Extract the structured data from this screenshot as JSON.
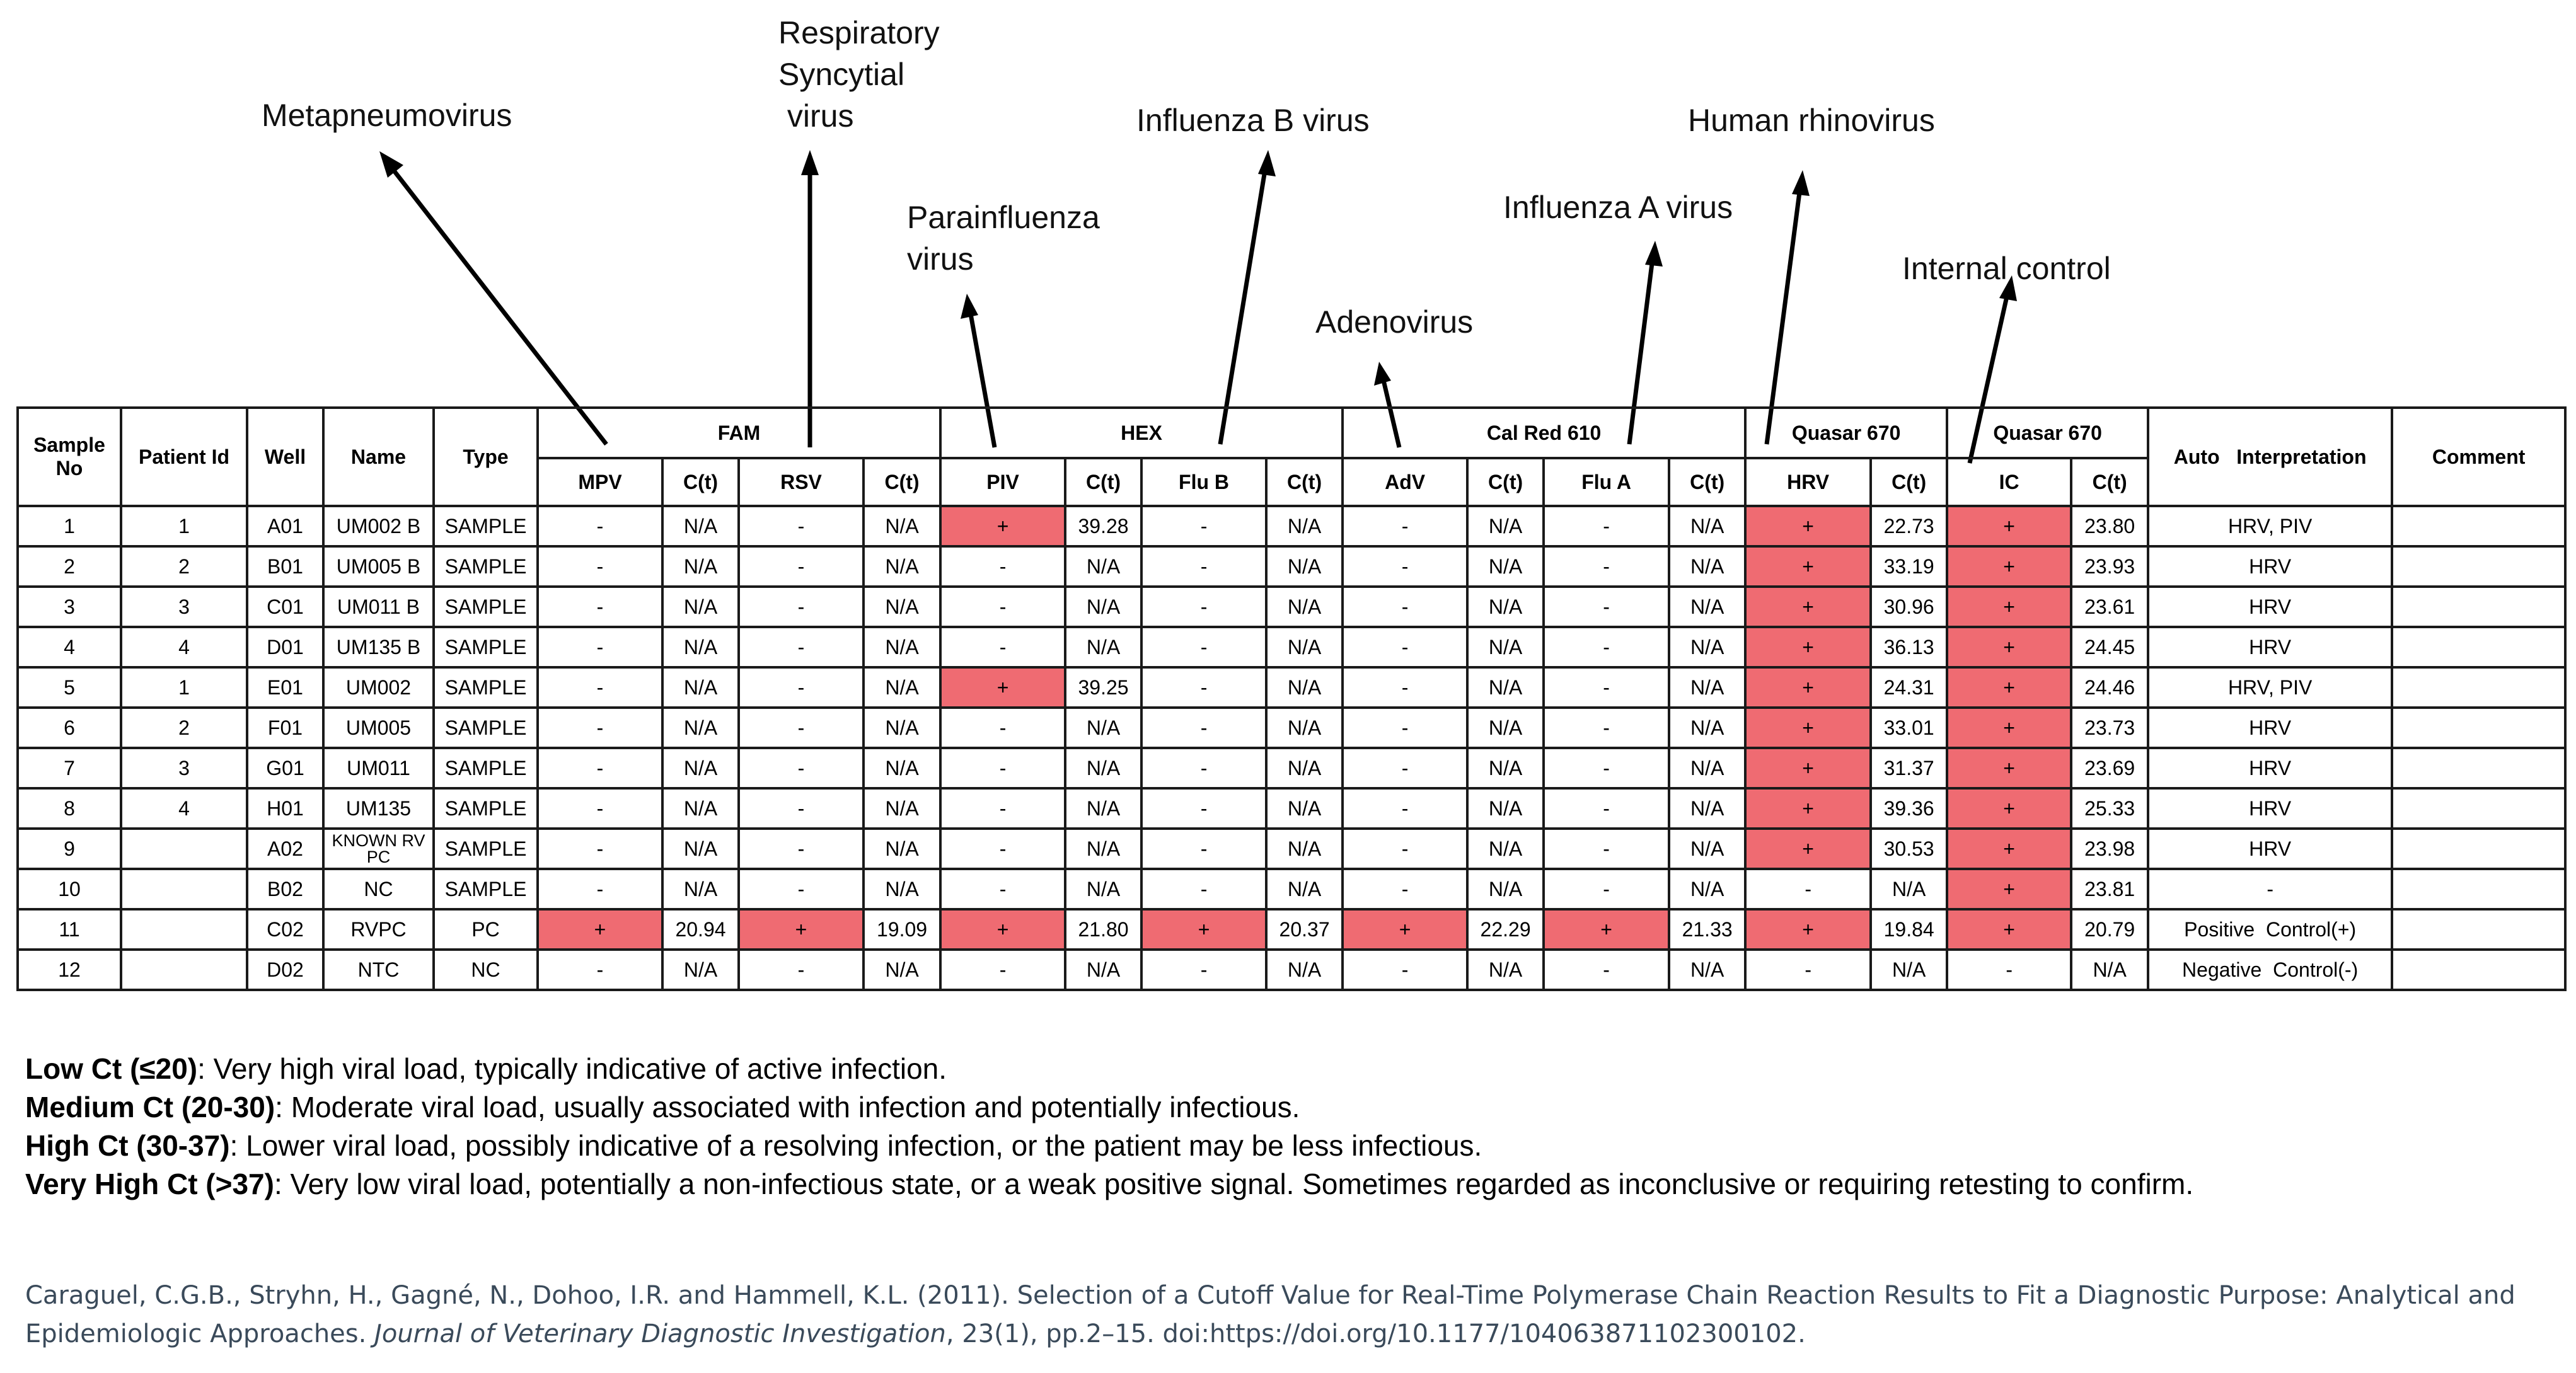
{
  "annotations": {
    "metapneumovirus": "Metapneumovirus",
    "rsv_line1": "Respiratory",
    "rsv_line2": "Syncytial",
    "rsv_line3": " virus",
    "influenza_b": "Influenza B virus",
    "parainfluenza_line1": "Parainfluenza",
    "parainfluenza_line2": "virus",
    "influenza_a": "Influenza A virus",
    "adenovirus": "Adenovirus",
    "human_rhinovirus": "Human rhinovirus",
    "internal_control": "Internal control"
  },
  "table": {
    "headers": {
      "sample_no": "Sample No",
      "patient_id": "Patient Id",
      "well": "Well",
      "name": "Name",
      "type": "Type",
      "fam": "FAM",
      "hex": "HEX",
      "calred": "Cal Red 610",
      "quasar1": "Quasar 670",
      "quasar2": "Quasar 670",
      "auto": "Auto   Interpretation",
      "comment": "Comment",
      "sub": [
        "MPV",
        "C(t)",
        "RSV",
        "C(t)",
        "PIV",
        "C(t)",
        "Flu B",
        "C(t)",
        "AdV",
        "C(t)",
        "Flu A",
        "C(t)",
        "HRV",
        "C(t)",
        "IC",
        "C(t)"
      ]
    },
    "rows": [
      {
        "sample": "1",
        "patient": "1",
        "well": "A01",
        "name": "UM002 B",
        "type": "SAMPLE",
        "vals": [
          "-",
          "N/A",
          "-",
          "N/A",
          "+",
          "39.28",
          "-",
          "N/A",
          "-",
          "N/A",
          "-",
          "N/A",
          "+",
          "22.73",
          "+",
          "23.80"
        ],
        "interp": "HRV, PIV",
        "comment": ""
      },
      {
        "sample": "2",
        "patient": "2",
        "well": "B01",
        "name": "UM005 B",
        "type": "SAMPLE",
        "vals": [
          "-",
          "N/A",
          "-",
          "N/A",
          "-",
          "N/A",
          "-",
          "N/A",
          "-",
          "N/A",
          "-",
          "N/A",
          "+",
          "33.19",
          "+",
          "23.93"
        ],
        "interp": "HRV",
        "comment": ""
      },
      {
        "sample": "3",
        "patient": "3",
        "well": "C01",
        "name": "UM011 B",
        "type": "SAMPLE",
        "vals": [
          "-",
          "N/A",
          "-",
          "N/A",
          "-",
          "N/A",
          "-",
          "N/A",
          "-",
          "N/A",
          "-",
          "N/A",
          "+",
          "30.96",
          "+",
          "23.61"
        ],
        "interp": "HRV",
        "comment": ""
      },
      {
        "sample": "4",
        "patient": "4",
        "well": "D01",
        "name": "UM135 B",
        "type": "SAMPLE",
        "vals": [
          "-",
          "N/A",
          "-",
          "N/A",
          "-",
          "N/A",
          "-",
          "N/A",
          "-",
          "N/A",
          "-",
          "N/A",
          "+",
          "36.13",
          "+",
          "24.45"
        ],
        "interp": "HRV",
        "comment": ""
      },
      {
        "sample": "5",
        "patient": "1",
        "well": "E01",
        "name": "UM002",
        "type": "SAMPLE",
        "vals": [
          "-",
          "N/A",
          "-",
          "N/A",
          "+",
          "39.25",
          "-",
          "N/A",
          "-",
          "N/A",
          "-",
          "N/A",
          "+",
          "24.31",
          "+",
          "24.46"
        ],
        "interp": "HRV, PIV",
        "comment": ""
      },
      {
        "sample": "6",
        "patient": "2",
        "well": "F01",
        "name": "UM005",
        "type": "SAMPLE",
        "vals": [
          "-",
          "N/A",
          "-",
          "N/A",
          "-",
          "N/A",
          "-",
          "N/A",
          "-",
          "N/A",
          "-",
          "N/A",
          "+",
          "33.01",
          "+",
          "23.73"
        ],
        "interp": "HRV",
        "comment": ""
      },
      {
        "sample": "7",
        "patient": "3",
        "well": "G01",
        "name": "UM011",
        "type": "SAMPLE",
        "vals": [
          "-",
          "N/A",
          "-",
          "N/A",
          "-",
          "N/A",
          "-",
          "N/A",
          "-",
          "N/A",
          "-",
          "N/A",
          "+",
          "31.37",
          "+",
          "23.69"
        ],
        "interp": "HRV",
        "comment": ""
      },
      {
        "sample": "8",
        "patient": "4",
        "well": "H01",
        "name": "UM135",
        "type": "SAMPLE",
        "vals": [
          "-",
          "N/A",
          "-",
          "N/A",
          "-",
          "N/A",
          "-",
          "N/A",
          "-",
          "N/A",
          "-",
          "N/A",
          "+",
          "39.36",
          "+",
          "25.33"
        ],
        "interp": "HRV",
        "comment": ""
      },
      {
        "sample": "9",
        "patient": "",
        "well": "A02",
        "name": "KNOWN RV PC",
        "name_l1": "KNOWN RV",
        "name_l2": "PC",
        "type": "SAMPLE",
        "vals": [
          "-",
          "N/A",
          "-",
          "N/A",
          "-",
          "N/A",
          "-",
          "N/A",
          "-",
          "N/A",
          "-",
          "N/A",
          "+",
          "30.53",
          "+",
          "23.98"
        ],
        "interp": "HRV",
        "comment": ""
      },
      {
        "sample": "10",
        "patient": "",
        "well": "B02",
        "name": "NC",
        "type": "SAMPLE",
        "vals": [
          "-",
          "N/A",
          "-",
          "N/A",
          "-",
          "N/A",
          "-",
          "N/A",
          "-",
          "N/A",
          "-",
          "N/A",
          "-",
          "N/A",
          "+",
          "23.81"
        ],
        "interp": "-",
        "comment": ""
      },
      {
        "sample": "11",
        "patient": "",
        "well": "C02",
        "name": "RVPC",
        "type": "PC",
        "vals": [
          "+",
          "20.94",
          "+",
          "19.09",
          "+",
          "21.80",
          "+",
          "20.37",
          "+",
          "22.29",
          "+",
          "21.33",
          "+",
          "19.84",
          "+",
          "20.79"
        ],
        "interp": "Positive  Control(+)",
        "comment": ""
      },
      {
        "sample": "12",
        "patient": "",
        "well": "D02",
        "name": "NTC",
        "type": "NC",
        "vals": [
          "-",
          "N/A",
          "-",
          "N/A",
          "-",
          "N/A",
          "-",
          "N/A",
          "-",
          "N/A",
          "-",
          "N/A",
          "-",
          "N/A",
          "-",
          "N/A"
        ],
        "interp": "Negative  Control(-)",
        "comment": ""
      }
    ],
    "positive_color": "#ef6b72"
  },
  "legend": [
    {
      "term": "Low Ct (≤20)",
      "desc": ": Very high viral load, typically indicative of active infection."
    },
    {
      "term": "Medium Ct (20-30)",
      "desc": ": Moderate viral load, usually associated with infection and potentially infectious."
    },
    {
      "term": "High Ct (30-37)",
      "desc": ": Lower viral load, possibly indicative of a resolving infection, or the patient may be less infectious."
    },
    {
      "term": "Very High Ct (>37)",
      "desc": ": Very low viral load, potentially a non-infectious state, or a weak positive signal. Sometimes regarded as inconclusive or requiring retesting to confirm."
    }
  ],
  "citation": {
    "line1": "Caraguel, C.G.B., Stryhn, H., Gagné, N., Dohoo, I.R. and Hammell, K.L. (2011). Selection of a Cutoff Value for Real-Time Polymerase Chain Reaction Results to Fit a Diagnostic Purpose: Analytical and",
    "line2_pre": "Epidemiologic Approaches. ",
    "journal": "Journal of Veterinary Diagnostic Investigation",
    "line2_post": ", 23(1), pp.2–15. doi:https://doi.org/10.1177/104063871102300102."
  }
}
